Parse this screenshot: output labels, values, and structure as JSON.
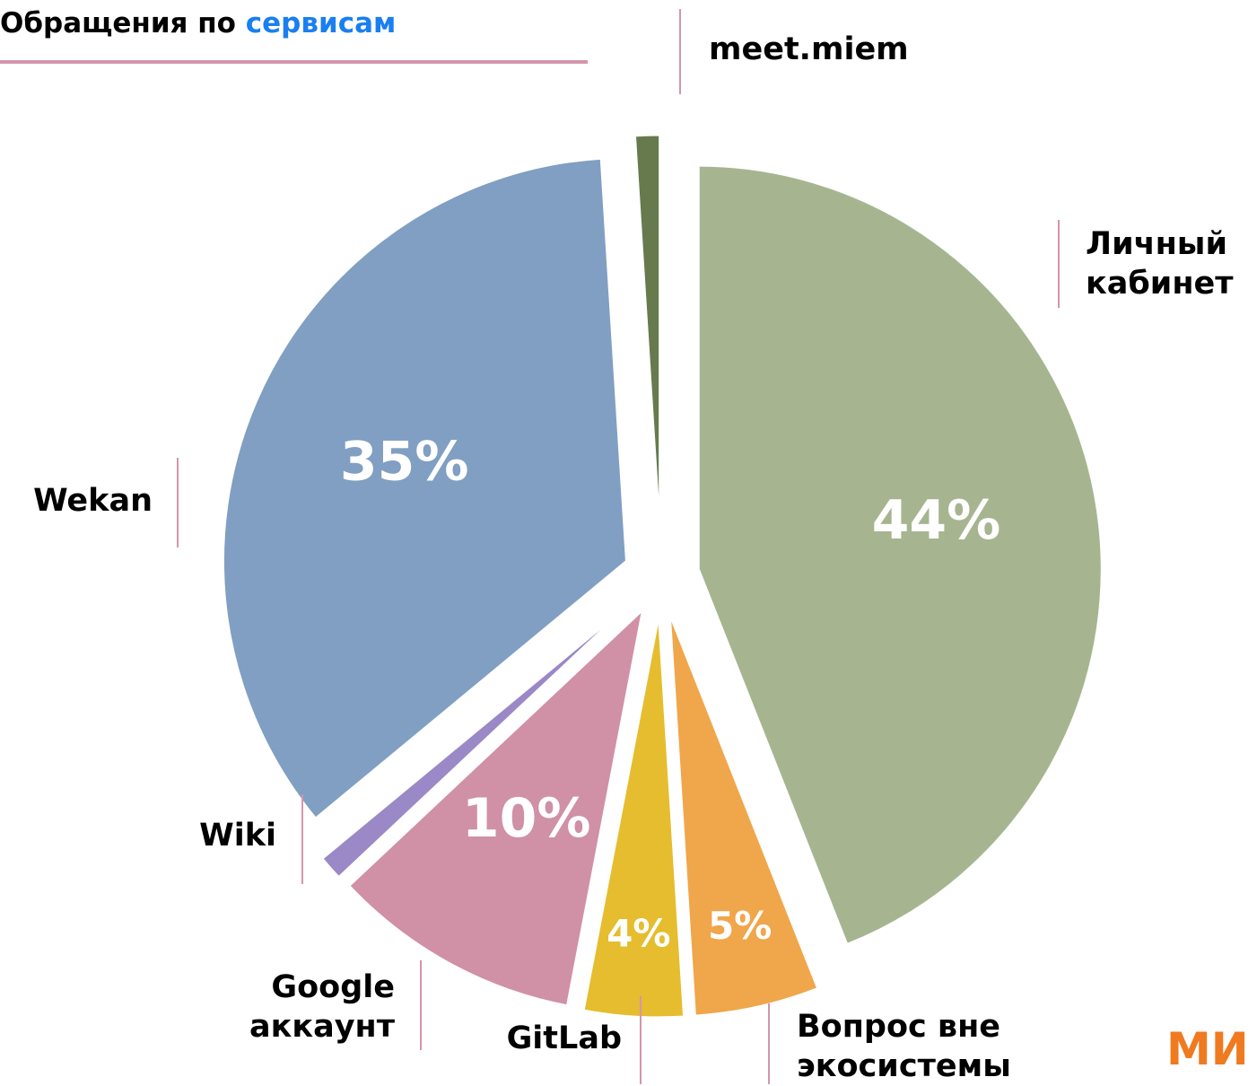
{
  "chart_data": {
    "type": "pie",
    "title": "Обращения по",
    "title_highlight": "сервисам",
    "categories": [
      "Личный кабинет",
      "Вопрос вне экосистемы",
      "GitLab",
      "Google аккаунт",
      "Wiki",
      "Wekan",
      "meet.miem"
    ],
    "values": [
      44,
      5,
      4,
      10,
      1,
      35,
      1
    ],
    "value_labels": [
      "44%",
      "5%",
      "4%",
      "10%",
      null,
      "35%",
      null
    ],
    "colors": [
      "#a6b590",
      "#f0a64a",
      "#e5bd2e",
      "#d090a6",
      "#9b88c6",
      "#809fc2",
      "#667a4e"
    ]
  },
  "logo": "МИ"
}
